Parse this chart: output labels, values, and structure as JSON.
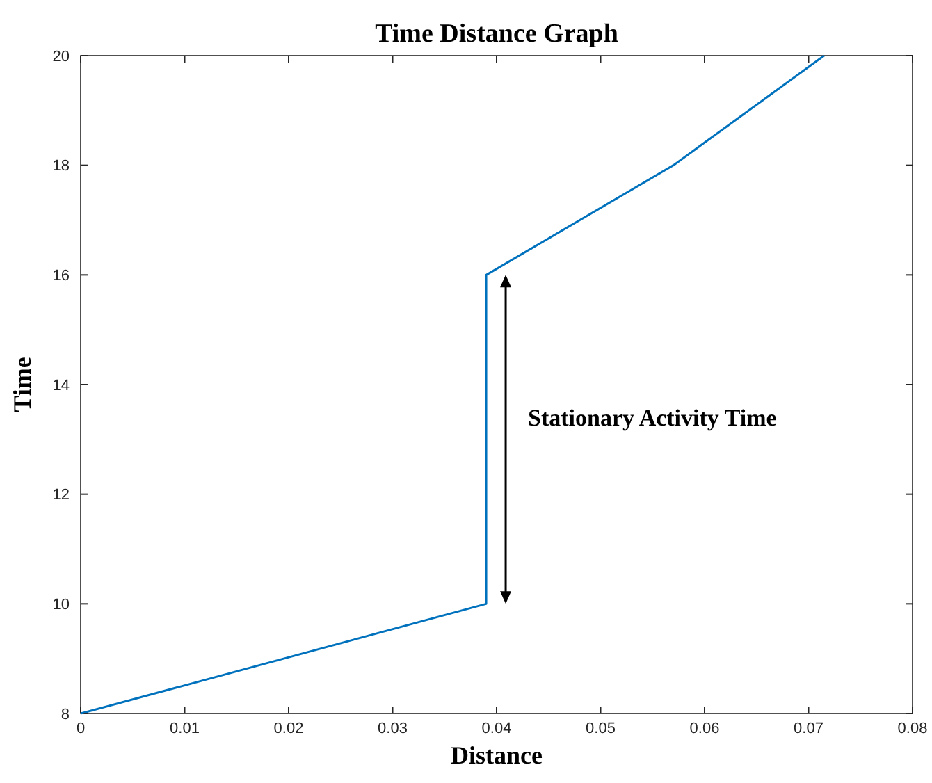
{
  "chart_data": {
    "type": "line",
    "title": "Time Distance Graph",
    "xlabel": "Distance",
    "ylabel": "Time",
    "x": [
      0,
      0.039,
      0.039,
      0.057,
      0.0715
    ],
    "series": [
      {
        "color": "#0072bd",
        "values": [
          8,
          10,
          16,
          18,
          20
        ]
      }
    ],
    "xlim": [
      0,
      0.08
    ],
    "xticks": [
      0,
      0.01,
      0.02,
      0.03,
      0.04,
      0.05,
      0.06,
      0.07,
      0.08
    ],
    "ylim": [
      8,
      20
    ],
    "yticks": [
      8,
      10,
      12,
      14,
      16,
      18,
      20
    ],
    "annotations": [
      "Stationary Activity Time"
    ],
    "grid": false
  }
}
